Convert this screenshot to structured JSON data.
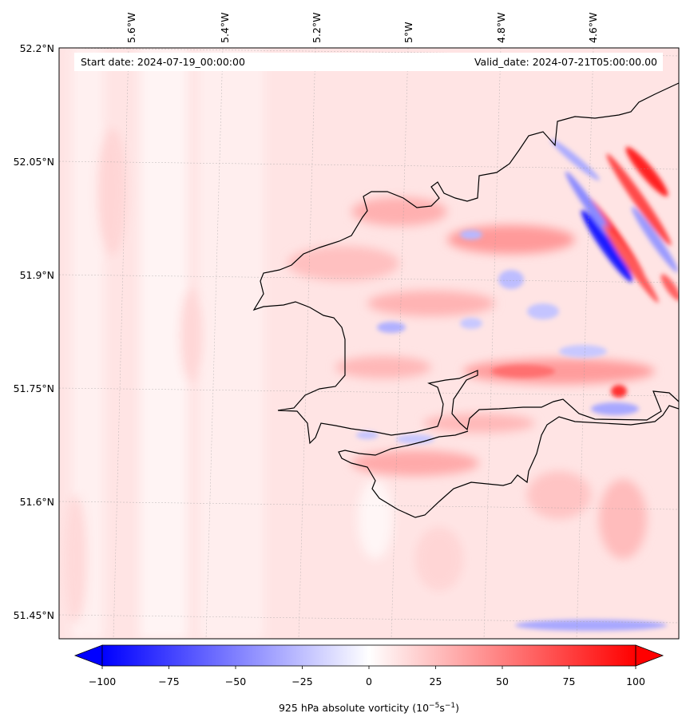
{
  "map": {
    "start_date": "Start date: 2024-07-19_00:00:00",
    "valid_date": "Valid_date: 2024-07-21T05:00:00.00",
    "lon_labels": [
      "5.6°W",
      "5.4°W",
      "5.2°W",
      "5°W",
      "4.8°W",
      "4.6°W"
    ],
    "lat_labels": [
      "52.2°N",
      "52.05°N",
      "51.9°N",
      "51.75°N",
      "51.6°N",
      "51.45°N"
    ],
    "field": "925 hPa absolute vorticity",
    "units": "10^-5 s^-1"
  },
  "colorbar": {
    "ticks": [
      "−100",
      "−75",
      "−50",
      "−25",
      "0",
      "25",
      "50",
      "75",
      "100"
    ],
    "label": "925 hPa absolute vorticity (10",
    "label_exp1": "−5",
    "label_mid": "s",
    "label_exp2": "−1",
    "label_end": ")",
    "min": -100,
    "max": 100,
    "colors": {
      "neg": "#0000ff",
      "zero": "#ffffff",
      "pos": "#ff0000",
      "coast": "#000000"
    }
  }
}
